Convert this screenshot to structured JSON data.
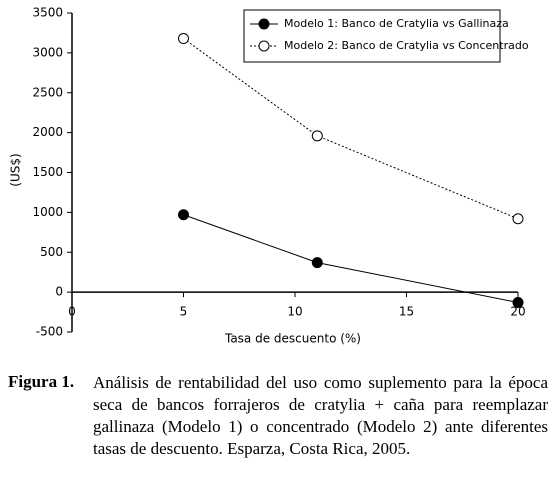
{
  "chart_data": {
    "type": "line",
    "x": [
      5,
      11,
      20
    ],
    "series": [
      {
        "name": "Modelo 1: Banco de Cratylia vs Gallinaza",
        "color": "#000000",
        "marker": "filled",
        "line_style": "solid",
        "values": [
          970,
          370,
          -130
        ]
      },
      {
        "name": "Modelo 2: Banco de Cratylia vs Concentrado",
        "color": "#000000",
        "marker": "open",
        "line_style": "dotted",
        "values": [
          3180,
          1960,
          920
        ]
      }
    ],
    "xlabel": "Tasa de descuento (%)",
    "ylabel": "(US$)",
    "xlim": [
      0,
      20
    ],
    "xticks": [
      0,
      5,
      10,
      15,
      20
    ],
    "ylim": [
      -500,
      3500
    ],
    "yticks": [
      -500,
      0,
      500,
      1000,
      1500,
      2000,
      2500,
      3000,
      3500
    ],
    "legend": "upper right"
  },
  "caption": {
    "label": "Figura 1.",
    "text": "Análisis de rentabilidad del uso como suplemento para la época seca de bancos forrajeros de cratylia + caña para reemplazar gallinaza (Modelo 1) o concentrado (Modelo 2) ante diferentes tasas de descuento. Esparza, Costa Rica, 2005."
  }
}
